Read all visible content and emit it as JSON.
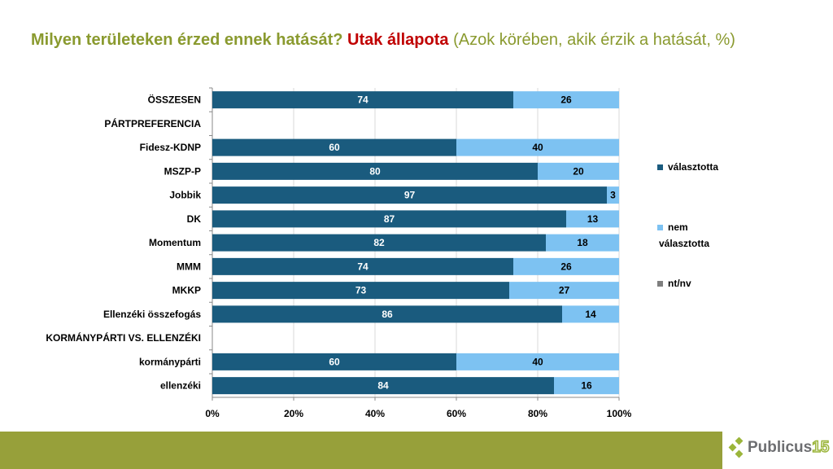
{
  "title": {
    "part1": "Milyen területeken érzed ennek hatását?",
    "part2": "Utak állapota",
    "part3": "(Azok körében, akik érzik a hatását, %)"
  },
  "chart_data": {
    "type": "bar",
    "stacked": true,
    "orientation": "horizontal",
    "categories": [
      "ÖSSZESEN",
      "PÁRTPREFERENCIA",
      "Fidesz-KDNP",
      "MSZP-P",
      "Jobbik",
      "DK",
      "Momentum",
      "MMM",
      "MKKP",
      "Ellenzéki összefogás",
      "KORMÁNYPÁRTI VS. ELLENZÉKI",
      "kormánypárti",
      "ellenzéki"
    ],
    "series": [
      {
        "name": "választotta",
        "color": "#1a5b7e",
        "values": [
          74,
          null,
          60,
          80,
          97,
          87,
          82,
          74,
          73,
          86,
          null,
          60,
          84
        ]
      },
      {
        "name": "nem választotta",
        "color": "#7dc2f2",
        "values": [
          26,
          null,
          40,
          20,
          3,
          13,
          18,
          26,
          27,
          14,
          null,
          40,
          16
        ]
      },
      {
        "name": "nt/nv",
        "color": "#7f7f7f",
        "values": [
          0,
          null,
          0,
          0,
          0,
          0,
          0,
          0,
          0,
          0,
          null,
          0,
          0
        ]
      }
    ],
    "xticks": [
      "0%",
      "20%",
      "40%",
      "60%",
      "80%",
      "100%"
    ],
    "xlim": [
      0,
      100
    ],
    "grid": true,
    "legend": "right"
  },
  "legend": {
    "items": [
      "választotta",
      "nem",
      "választotta",
      "nt/nv"
    ]
  },
  "logo": {
    "text": "Publicus",
    "number": "15"
  }
}
